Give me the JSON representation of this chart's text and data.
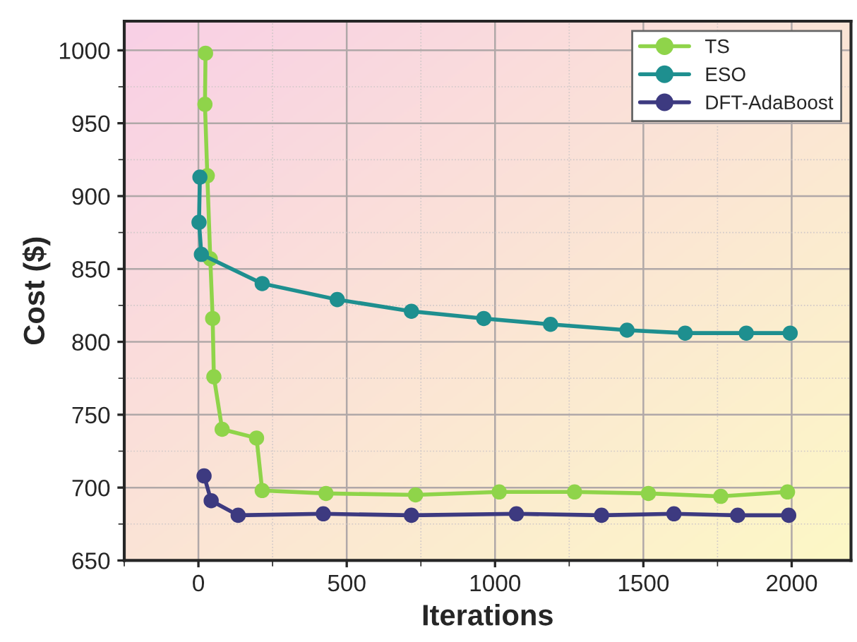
{
  "chart_data": {
    "type": "line",
    "xlabel": "Iterations",
    "ylabel": "Cost ($)",
    "xlim": [
      -250,
      2200
    ],
    "ylim": [
      650,
      1020
    ],
    "xticks": [
      0,
      500,
      1000,
      1500,
      2000
    ],
    "yticks": [
      650,
      700,
      750,
      800,
      850,
      900,
      950,
      1000
    ],
    "grid": true,
    "legend": "top right",
    "marker": "circle",
    "line_style": "solid",
    "series": [
      {
        "name": "TS",
        "color": "#8fd44a",
        "x": [
          24,
          22,
          30,
          40,
          48,
          52,
          80,
          196,
          215,
          430,
          732,
          1014,
          1268,
          1517,
          1761,
          1986
        ],
        "values": [
          998,
          963,
          914,
          857,
          816,
          776,
          740,
          734,
          698,
          696,
          695,
          697,
          697,
          696,
          694,
          697
        ]
      },
      {
        "name": "ESO",
        "color": "#1e8f8f",
        "x": [
          5,
          2,
          10,
          215,
          468,
          718,
          962,
          1187,
          1445,
          1641,
          1847,
          1995
        ],
        "values": [
          913,
          882,
          860,
          840,
          829,
          821,
          816,
          812,
          808,
          806,
          806,
          806
        ]
      },
      {
        "name": "DFT-AdaBoost",
        "color": "#3d3a80",
        "x": [
          19,
          43,
          134,
          421,
          718,
          1072,
          1359,
          1603,
          1818,
          1990
        ],
        "values": [
          708,
          691,
          681,
          682,
          681,
          682,
          681,
          682,
          681,
          681
        ]
      }
    ]
  }
}
